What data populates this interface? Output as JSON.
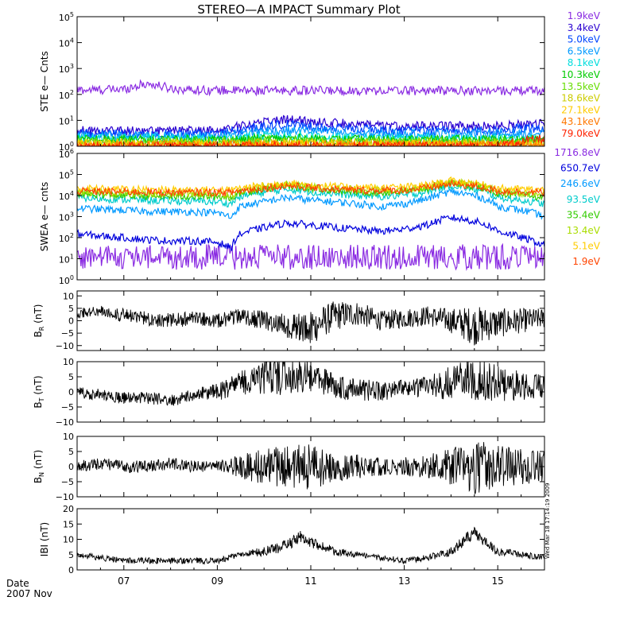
{
  "chart_data": [
    {
      "type": "line",
      "title": "STEREO—A IMPACT Summary Plot",
      "ylabel": "STE e— Cnts",
      "yscale": "log",
      "ylim": [
        1,
        100000
      ],
      "yticks": [
        {
          "v": 1,
          "m": "10",
          "e": "0"
        },
        {
          "v": 10,
          "m": "10",
          "e": "1"
        },
        {
          "v": 100,
          "m": "10",
          "e": "2"
        },
        {
          "v": 1000,
          "m": "10",
          "e": "3"
        },
        {
          "v": 10000,
          "m": "10",
          "e": "4"
        },
        {
          "v": 100000,
          "m": "10",
          "e": "5"
        }
      ],
      "x": [
        6.0,
        6.5,
        7.0,
        7.5,
        8.0,
        8.5,
        9.0,
        9.5,
        10.0,
        10.5,
        11.0,
        11.5,
        12.0,
        12.5,
        13.0,
        13.5,
        14.0,
        14.5,
        15.0,
        15.5,
        16.0
      ],
      "series": [
        {
          "name": "1.9keV",
          "color": "#8a2be2",
          "values": [
            150,
            150,
            160,
            260,
            170,
            150,
            145,
            140,
            140,
            140,
            140,
            140,
            140,
            140,
            140,
            140,
            140,
            140,
            140,
            140,
            140
          ]
        },
        {
          "name": "3.4keV",
          "color": "#2a00d0",
          "values": [
            4,
            4,
            4,
            4,
            4,
            4,
            4,
            6,
            9,
            11,
            9,
            8,
            7,
            6,
            6,
            6,
            6,
            6,
            6,
            7,
            8
          ]
        },
        {
          "name": "5.0keV",
          "color": "#0044ff",
          "values": [
            3,
            3,
            3,
            3,
            3,
            3,
            3,
            4,
            6,
            7,
            6,
            5,
            5,
            4,
            4,
            4,
            4,
            4,
            4,
            5,
            5
          ]
        },
        {
          "name": "6.5keV",
          "color": "#0099ff",
          "values": [
            2.5,
            2.5,
            2.5,
            2.5,
            2.5,
            2.5,
            2.5,
            3,
            4,
            4,
            4,
            3.5,
            3,
            3,
            3,
            3,
            3,
            3,
            3,
            3,
            3
          ]
        },
        {
          "name": "8.1keV",
          "color": "#00dddd",
          "values": [
            2,
            2,
            2,
            2,
            2,
            2,
            2,
            2.2,
            2.5,
            2.5,
            2.5,
            2.2,
            2,
            2,
            2,
            2,
            2,
            2,
            2,
            2,
            2
          ]
        },
        {
          "name": "10.3keV",
          "color": "#00cc00",
          "values": [
            1.8,
            1.8,
            1.8,
            1.8,
            1.8,
            1.8,
            1.8,
            1.8,
            2,
            2,
            2,
            1.8,
            1.8,
            1.8,
            1.8,
            1.8,
            1.8,
            1.8,
            1.8,
            1.8,
            1.8
          ]
        },
        {
          "name": "13.5keV",
          "color": "#66dd00",
          "values": [
            1.5,
            1.5,
            1.5,
            1.5,
            1.5,
            1.5,
            1.5,
            1.5,
            1.6,
            1.6,
            1.6,
            1.5,
            1.5,
            1.5,
            1.5,
            1.5,
            1.5,
            1.5,
            1.5,
            1.5,
            1.5
          ]
        },
        {
          "name": "18.6keV",
          "color": "#cccc00",
          "values": [
            1.3,
            1.3,
            1.3,
            1.3,
            1.3,
            1.3,
            1.3,
            1.3,
            1.3,
            1.3,
            1.3,
            1.3,
            1.3,
            1.3,
            1.3,
            1.3,
            1.3,
            1.3,
            1.3,
            1.3,
            1.3
          ]
        },
        {
          "name": "27.1keV",
          "color": "#ffcc00",
          "values": [
            1.2,
            1.2,
            1.2,
            1.2,
            1.2,
            1.2,
            1.2,
            1.2,
            1.2,
            1.2,
            1.2,
            1.2,
            1.2,
            1.2,
            1.2,
            1.2,
            1.2,
            1.2,
            1.2,
            1.2,
            1.2
          ]
        },
        {
          "name": "43.1keV",
          "color": "#ff7700",
          "values": [
            1.1,
            1.1,
            1.1,
            1.1,
            1.1,
            1.1,
            1.1,
            1.1,
            1.1,
            1.1,
            1.1,
            1.1,
            1.1,
            1.1,
            1.1,
            1.1,
            1.1,
            1.1,
            1.1,
            1.1,
            1.1
          ]
        },
        {
          "name": "79.0keV",
          "color": "#ff2200",
          "values": [
            1,
            1,
            1,
            1,
            1,
            1,
            1,
            1,
            1,
            1,
            1,
            1,
            1,
            1,
            1,
            1,
            1,
            1,
            1,
            1.5,
            2
          ]
        }
      ]
    },
    {
      "type": "line",
      "ylabel": "SWEA e— cnts",
      "yscale": "log",
      "ylim": [
        1,
        1000000
      ],
      "yticks": [
        {
          "v": 1,
          "m": "10",
          "e": "0"
        },
        {
          "v": 10,
          "m": "10",
          "e": "1"
        },
        {
          "v": 100,
          "m": "10",
          "e": "2"
        },
        {
          "v": 1000,
          "m": "10",
          "e": "3"
        },
        {
          "v": 10000,
          "m": "10",
          "e": "4"
        },
        {
          "v": 100000,
          "m": "10",
          "e": "5"
        },
        {
          "v": 1000000,
          "m": "10",
          "e": "6"
        }
      ],
      "x": [
        6.0,
        6.5,
        7.0,
        7.5,
        8.0,
        8.5,
        9.0,
        9.3,
        9.5,
        10.0,
        10.5,
        11.0,
        11.5,
        12.0,
        12.5,
        13.0,
        13.5,
        14.0,
        14.5,
        15.0,
        15.5,
        16.0
      ],
      "series": [
        {
          "name": "1716.8eV",
          "color": "#8a2be2",
          "values": [
            12,
            12,
            12,
            12,
            12,
            12,
            12,
            12,
            12,
            12,
            12,
            12,
            12,
            12,
            12,
            12,
            12,
            12,
            12,
            12,
            12,
            12
          ]
        },
        {
          "name": "650.7eV",
          "color": "#0000dd",
          "values": [
            150,
            120,
            100,
            80,
            70,
            70,
            60,
            30,
            150,
            300,
            500,
            400,
            300,
            250,
            200,
            250,
            400,
            900,
            600,
            200,
            100,
            40
          ]
        },
        {
          "name": "246.6eV",
          "color": "#0099ff",
          "values": [
            2500,
            2200,
            2000,
            1800,
            1700,
            1700,
            1500,
            900,
            3000,
            5000,
            8000,
            6000,
            5000,
            4000,
            3000,
            4000,
            7000,
            15000,
            10000,
            3000,
            2000,
            1000
          ]
        },
        {
          "name": "93.5eV",
          "color": "#00cccc",
          "values": [
            8000,
            7000,
            6500,
            6000,
            5500,
            5500,
            5000,
            4000,
            9000,
            14000,
            20000,
            15000,
            12000,
            10000,
            9000,
            10000,
            15000,
            30000,
            20000,
            8000,
            6000,
            4000
          ]
        },
        {
          "name": "35.4eV",
          "color": "#33cc00",
          "values": [
            12000,
            11000,
            10000,
            9500,
            9000,
            9000,
            9000,
            8000,
            14000,
            20000,
            30000,
            22000,
            18000,
            15000,
            14000,
            15000,
            22000,
            40000,
            28000,
            13000,
            10000,
            8000
          ]
        },
        {
          "name": "13.4eV",
          "color": "#aadd00",
          "values": [
            15000,
            14000,
            13000,
            12000,
            12000,
            12000,
            12000,
            11000,
            17000,
            25000,
            35000,
            26000,
            22000,
            19000,
            18000,
            19000,
            26000,
            45000,
            32000,
            16000,
            13000,
            11000
          ]
        },
        {
          "name": "5.1eV",
          "color": "#ffcc00",
          "values": [
            22000,
            21000,
            20000,
            19000,
            19000,
            19000,
            19000,
            18000,
            23000,
            30000,
            40000,
            31000,
            27000,
            25000,
            24000,
            25000,
            31000,
            50000,
            38000,
            22000,
            20000,
            18000
          ]
        },
        {
          "name": "1.9eV",
          "color": "#ff4400",
          "values": [
            16000,
            15500,
            15000,
            14500,
            14000,
            14000,
            14000,
            14000,
            17000,
            22000,
            30000,
            23000,
            20000,
            18000,
            17500,
            18000,
            23000,
            35000,
            28000,
            16000,
            15000,
            14000
          ]
        }
      ]
    },
    {
      "type": "line",
      "ylabel_main": "B",
      "ylabel_sub": "R",
      "ylabel_unit": "(nT)",
      "ylim": [
        -12,
        12
      ],
      "yticks": [
        {
          "v": -10,
          "t": "−10"
        },
        {
          "v": -5,
          "t": "−5"
        },
        {
          "v": 0,
          "t": "0"
        },
        {
          "v": 5,
          "t": "5"
        },
        {
          "v": 10,
          "t": "10"
        }
      ],
      "x": [
        6.0,
        6.5,
        7.0,
        7.5,
        8.0,
        8.5,
        9.0,
        9.5,
        10.0,
        10.5,
        11.0,
        11.5,
        12.0,
        12.5,
        13.0,
        13.5,
        14.0,
        14.5,
        15.0,
        15.5,
        16.0
      ],
      "values": [
        3,
        4,
        2,
        1,
        0,
        1,
        0,
        2,
        0,
        -2,
        -3,
        2,
        3,
        0,
        1,
        2,
        0,
        -2,
        -1,
        0,
        1
      ],
      "noise": [
        2,
        2,
        3,
        3,
        3,
        3,
        3,
        3,
        4,
        5,
        7,
        6,
        5,
        4,
        4,
        4,
        5,
        8,
        6,
        5,
        4
      ]
    },
    {
      "type": "line",
      "ylabel_main": "B",
      "ylabel_sub": "T",
      "ylabel_unit": "(nT)",
      "ylim": [
        -10,
        10
      ],
      "yticks": [
        {
          "v": -10,
          "t": "−10"
        },
        {
          "v": -5,
          "t": "−5"
        },
        {
          "v": 0,
          "t": "0"
        },
        {
          "v": 5,
          "t": "5"
        },
        {
          "v": 10,
          "t": "10"
        }
      ],
      "x": [
        6.0,
        6.5,
        7.0,
        7.5,
        8.0,
        8.5,
        9.0,
        9.5,
        10.0,
        10.5,
        11.0,
        11.5,
        12.0,
        12.5,
        13.0,
        13.5,
        14.0,
        14.5,
        15.0,
        15.5,
        16.0
      ],
      "values": [
        0,
        -1,
        -2,
        -2,
        -3,
        -1,
        0,
        3,
        5,
        6,
        5,
        2,
        1,
        0,
        1,
        2,
        3,
        5,
        3,
        2,
        2
      ],
      "noise": [
        2,
        2,
        2,
        2,
        2,
        2,
        3,
        4,
        6,
        7,
        5,
        4,
        4,
        3,
        3,
        4,
        6,
        8,
        6,
        5,
        4
      ]
    },
    {
      "type": "line",
      "ylabel_main": "B",
      "ylabel_sub": "N",
      "ylabel_unit": "(nT)",
      "ylim": [
        -10,
        10
      ],
      "yticks": [
        {
          "v": -10,
          "t": "−10"
        },
        {
          "v": -5,
          "t": "−5"
        },
        {
          "v": 0,
          "t": "0"
        },
        {
          "v": 5,
          "t": "5"
        },
        {
          "v": 10,
          "t": "10"
        }
      ],
      "x": [
        6.0,
        6.5,
        7.0,
        7.5,
        8.0,
        8.5,
        9.0,
        9.5,
        10.0,
        10.5,
        11.0,
        11.5,
        12.0,
        12.5,
        13.0,
        13.5,
        14.0,
        14.5,
        15.0,
        15.5,
        16.0
      ],
      "values": [
        0,
        1,
        0,
        0,
        1,
        0,
        0,
        0,
        0,
        0,
        0,
        0,
        0,
        0,
        0,
        0,
        0,
        0,
        0,
        0,
        0
      ],
      "noise": [
        2,
        2,
        2,
        2,
        2,
        2,
        2,
        4,
        6,
        7,
        8,
        5,
        4,
        3,
        3,
        4,
        6,
        9,
        7,
        6,
        5
      ]
    },
    {
      "type": "line",
      "ylabel": "IBI (nT)",
      "ylim": [
        0,
        20
      ],
      "yticks": [
        {
          "v": 0,
          "t": "0"
        },
        {
          "v": 5,
          "t": "5"
        },
        {
          "v": 10,
          "t": "10"
        },
        {
          "v": 15,
          "t": "15"
        },
        {
          "v": 20,
          "t": "20"
        }
      ],
      "x": [
        6.0,
        6.5,
        7.0,
        7.5,
        8.0,
        8.5,
        9.0,
        9.5,
        10.0,
        10.5,
        10.8,
        11.0,
        11.5,
        12.0,
        12.5,
        13.0,
        13.5,
        14.0,
        14.3,
        14.5,
        15.0,
        15.5,
        16.0
      ],
      "values": [
        5,
        4,
        3,
        3,
        3,
        3,
        3,
        5,
        6,
        8,
        11,
        9,
        6,
        5,
        4,
        3,
        4,
        6,
        10,
        12,
        6,
        5,
        4
      ],
      "noise": [
        1,
        1,
        1,
        1,
        1,
        1,
        1,
        1,
        1.5,
        2,
        2,
        2,
        1.5,
        1,
        1,
        1,
        1,
        1.5,
        2,
        2,
        1.5,
        1,
        1
      ]
    }
  ],
  "x_axis": {
    "xlim": [
      6.0,
      16.0
    ],
    "ticks": [
      {
        "v": 7,
        "t": "07"
      },
      {
        "v": 9,
        "t": "09"
      },
      {
        "v": 11,
        "t": "11"
      },
      {
        "v": 13,
        "t": "13"
      },
      {
        "v": 15,
        "t": "15"
      }
    ],
    "label_top": "Date",
    "label_bottom": "2007 Nov"
  },
  "timestamp": "Wed Mar 18 17:14:19 2009"
}
